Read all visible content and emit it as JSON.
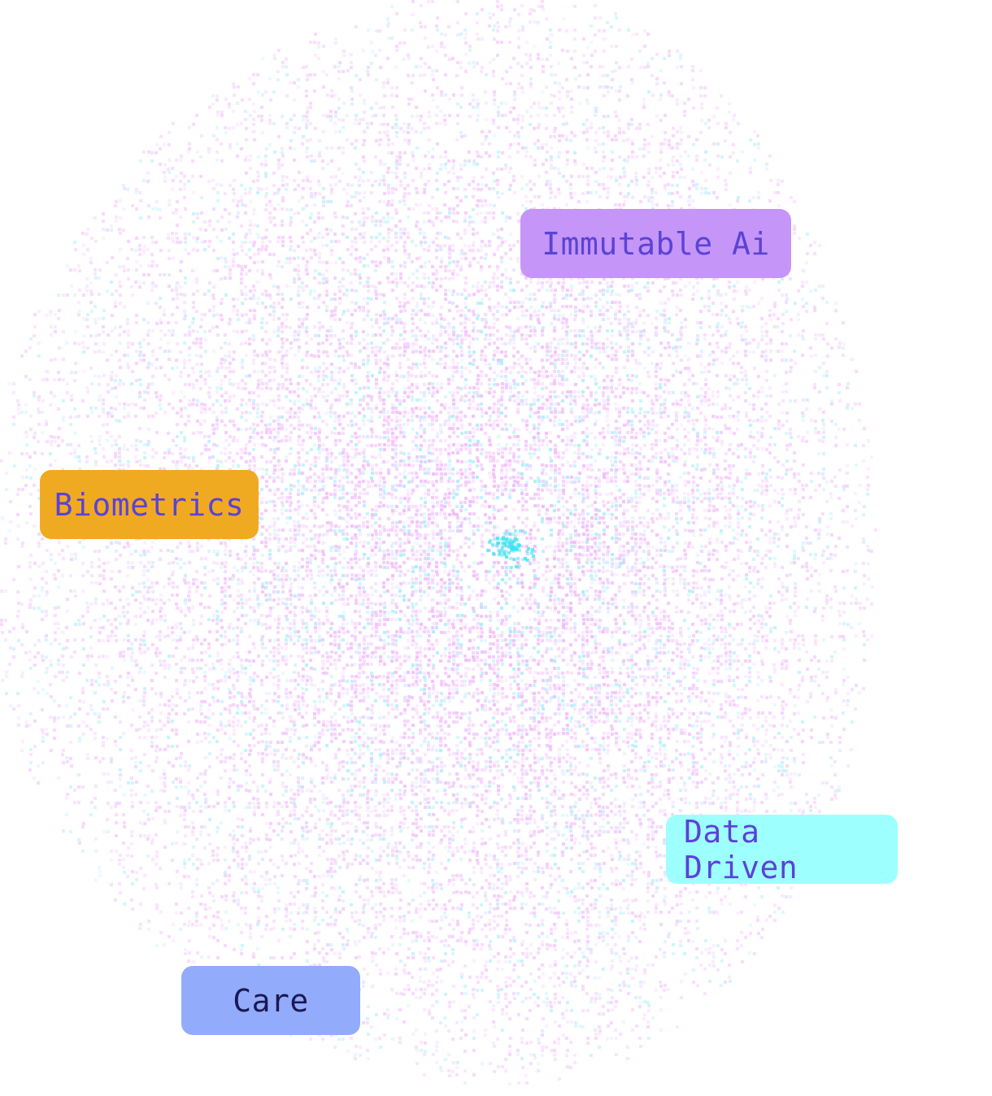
{
  "tags": [
    {
      "key": "immutable",
      "label": "Immutable Ai",
      "bg": "#c595f7",
      "fg": "#5a43d6"
    },
    {
      "key": "biometrics",
      "label": "Biometrics",
      "bg": "#f0aa22",
      "fg": "#5a43d6"
    },
    {
      "key": "data",
      "label": "Data Driven",
      "bg": "#9effff",
      "fg": "#5a43d6"
    },
    {
      "key": "care",
      "label": "Care",
      "bg": "#92abfb",
      "fg": "#1c1850"
    }
  ],
  "colors": {
    "particle_magenta": "#e07cf5",
    "particle_cyan": "#5fd8f0",
    "particle_core": "#3fe3f3"
  }
}
